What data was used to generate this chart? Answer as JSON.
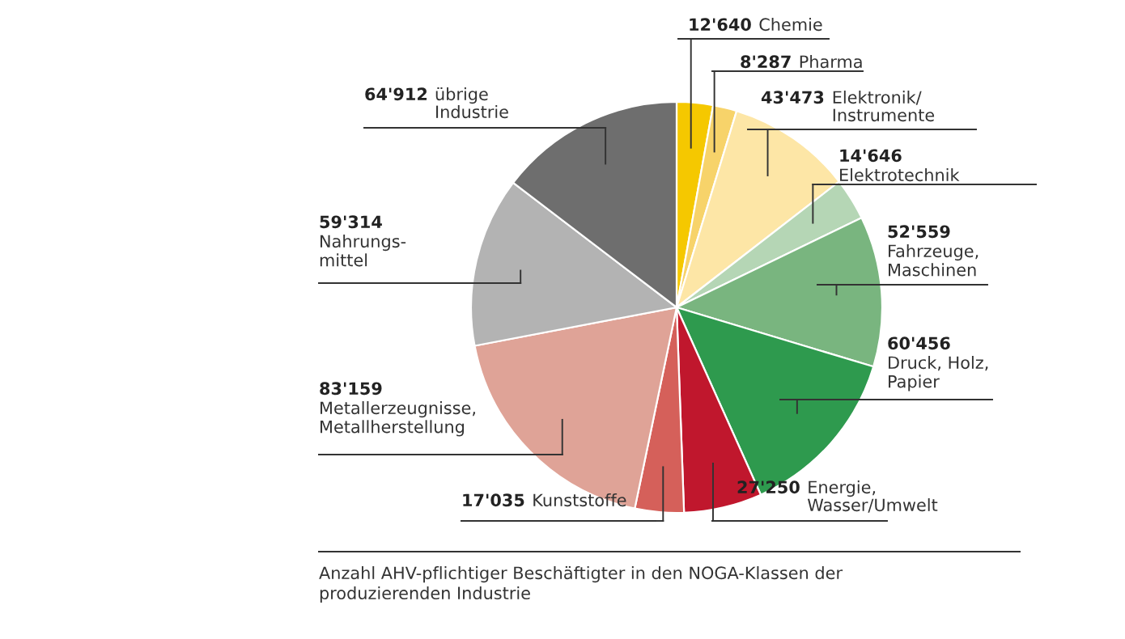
{
  "chart_data": {
    "type": "pie",
    "categories": [
      "Chemie",
      "Pharma",
      "Elektronik/\nInstrumente",
      "Elektrotechnik",
      "Fahrzeuge,\nMaschinen",
      "Druck, Holz,\nPapier",
      "Energie,\nWasser/Umwelt",
      "Kunststoffe",
      "Metallerzeugnisse,\nMetallherstellung",
      "Nahrungs-\nmittel",
      "übrige\nIndustrie"
    ],
    "values": [
      12640,
      8287,
      43473,
      14646,
      52559,
      60456,
      27250,
      17035,
      83159,
      59314,
      64912
    ],
    "value_labels": [
      "12'640",
      "8'287",
      "43'473",
      "14'646",
      "52'559",
      "60'456",
      "27'250",
      "17'035",
      "83'159",
      "59'314",
      "64'912"
    ],
    "colors": [
      "#f5c800",
      "#f7d36a",
      "#fde6a6",
      "#b5d6b5",
      "#79b57f",
      "#2e9a4e",
      "#c0172d",
      "#d5605a",
      "#dfa397",
      "#b3b3b3",
      "#6e6e6e"
    ],
    "annotations": [
      "Anzahl AHV-pflichtiger Beschäftigter in den NOGA-Klassen der\nproduzierenden Industrie"
    ]
  }
}
